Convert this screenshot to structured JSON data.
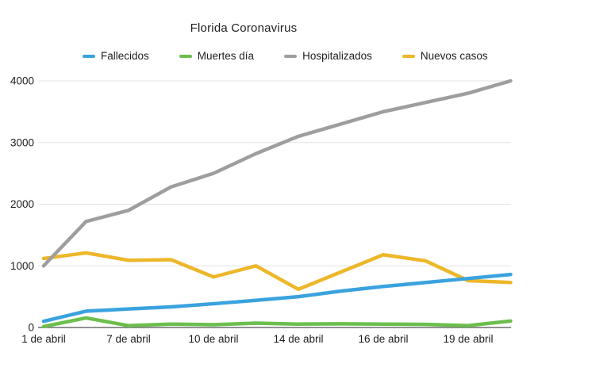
{
  "chart_data": {
    "type": "line",
    "title": "Florida Coronavirus",
    "categories": [
      "1 de abril",
      "",
      "7 de abril",
      "",
      "10 de abril",
      "",
      "14 de abril",
      "",
      "16 de abril",
      "",
      "19 de abril",
      ""
    ],
    "series": [
      {
        "name": "Fallecidos",
        "color": "#3AA2DE",
        "values": [
          100,
          265,
          300,
          335,
          385,
          440,
          500,
          590,
          665,
          730,
          795,
          860
        ]
      },
      {
        "name": "Muertes día",
        "color": "#6CBF4C",
        "values": [
          15,
          155,
          30,
          55,
          45,
          70,
          55,
          60,
          55,
          50,
          30,
          105
        ]
      },
      {
        "name": "Hospitalizados",
        "color": "#9E9E9E",
        "values": [
          1000,
          1720,
          1900,
          2280,
          2500,
          2820,
          3100,
          3300,
          3500,
          3650,
          3800,
          4000
        ]
      },
      {
        "name": "Nuevos casos",
        "color": "#EDB72A",
        "values": [
          1120,
          1210,
          1090,
          1100,
          820,
          1000,
          620,
          900,
          1180,
          1080,
          760,
          730
        ]
      }
    ],
    "ylim": [
      0,
      4000
    ],
    "yticks": [
      0,
      1000,
      2000,
      3000,
      4000
    ],
    "grid": true,
    "legend_position": "top",
    "draw_order": [
      "Nuevos casos",
      "Hospitalizados",
      "Muertes día",
      "Fallecidos"
    ],
    "line_width": 4.5,
    "colors": {
      "gridline": "#E3E3E3",
      "axis_line": "#6E6E6E",
      "text": "#1e1e1e"
    }
  }
}
